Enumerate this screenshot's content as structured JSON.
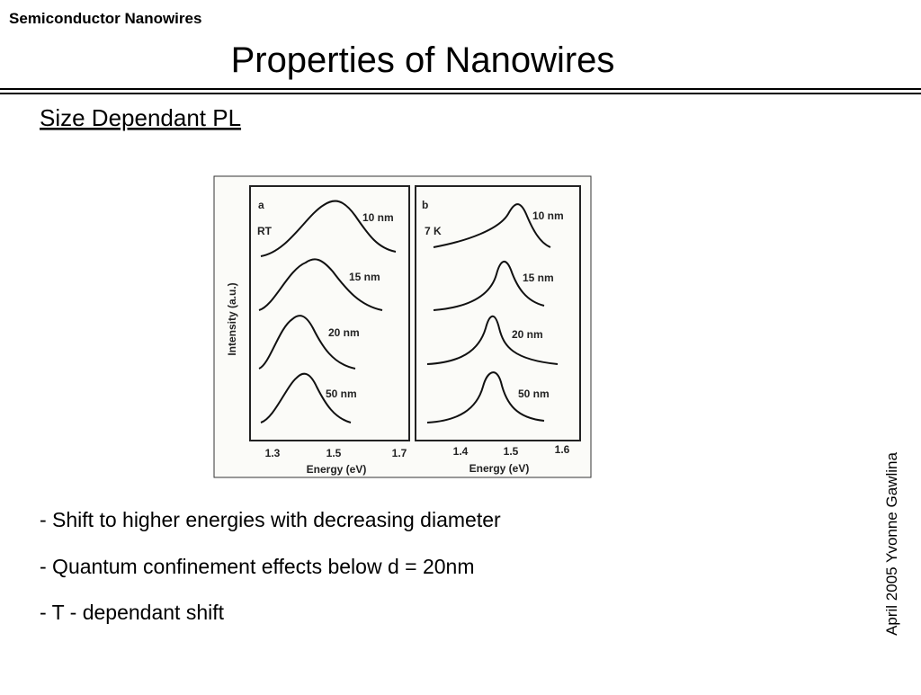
{
  "header": {
    "section": "Semiconductor Nanowires",
    "title": "Properties of Nanowires"
  },
  "subtitle": "Size Dependant PL",
  "figure": {
    "y_label": "Intensity (a.u.)",
    "panels": [
      {
        "letter": "a",
        "condition": "RT",
        "x_label": "Energy (eV)",
        "x_ticks": [
          "1.3",
          "1.5",
          "1.7"
        ],
        "curves": [
          "10 nm",
          "15 nm",
          "20 nm",
          "50 nm"
        ]
      },
      {
        "letter": "b",
        "condition": "7 K",
        "x_label": "Energy (eV)",
        "x_ticks": [
          "1.4",
          "1.5",
          "1.6"
        ],
        "curves": [
          "10 nm",
          "15 nm",
          "20 nm",
          "50 nm"
        ]
      }
    ]
  },
  "bullets": [
    "- Shift to higher energies with decreasing diameter",
    "- Quantum confinement effects below d = 20nm",
    "- T - dependant shift"
  ],
  "footer": "April 2005 Yvonne Gawlina"
}
